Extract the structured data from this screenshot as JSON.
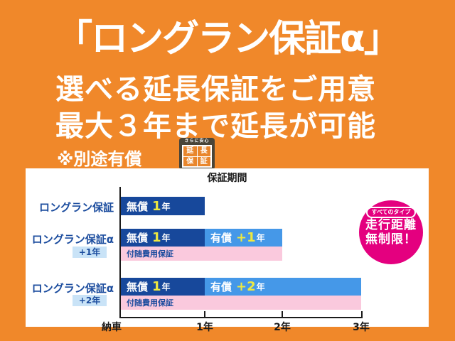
{
  "header": {
    "title": "「ロングラン保証α」",
    "subtitle1": "選べる延長保証をご用意",
    "subtitle2": "最大３年まで延長が可能",
    "note": "※別途有償",
    "stamp": {
      "tagline": "さらに安心",
      "chars": [
        "延",
        "長",
        "保",
        "証"
      ]
    }
  },
  "chart": {
    "title": "保証期間",
    "rows": [
      {
        "label": "ロングラン保証",
        "free": {
          "label": "無償",
          "num": "1",
          "unit": "年"
        }
      },
      {
        "label": "ロングラン保証α",
        "sublabel": "+1年",
        "free": {
          "label": "無償",
          "num": "1",
          "unit": "年"
        },
        "paid": {
          "label": "有償",
          "num": "+1",
          "unit": "年"
        },
        "cost_label": "付随費用保証"
      },
      {
        "label": "ロングラン保証α",
        "sublabel": "+2年",
        "free": {
          "label": "無償",
          "num": "1",
          "unit": "年"
        },
        "paid": {
          "label": "有償",
          "num": "+2",
          "unit": "年"
        },
        "cost_label": "付随費用保証"
      }
    ],
    "x_labels": [
      "納車",
      "1年",
      "2年",
      "3年"
    ],
    "badge": {
      "pill": "すべてのタイプ",
      "line1": "走行距離",
      "line2": "無制限！"
    }
  },
  "colors": {
    "background_orange": "#F0882A",
    "free_bar_blue": "#17489B",
    "paid_bar_blue": "#4598E8",
    "cost_bar_pink": "#FAC9DD",
    "label_blue": "#1B4C9E",
    "sublabel_bg_blue": "#C9E3F7",
    "badge_magenta": "#E4007F",
    "year_number_yellow": "#EFE93F"
  },
  "chart_data": {
    "type": "bar",
    "subtype": "horizontal-timeline",
    "title": "保証期間",
    "xlim_years": [
      0,
      3
    ],
    "x_ticks": [
      "納車",
      "1年",
      "2年",
      "3年"
    ],
    "rows": [
      {
        "label": "ロングラン保証",
        "bars": [
          {
            "name": "無償 1年",
            "start": 0,
            "end": 1
          }
        ]
      },
      {
        "label": "ロングラン保証α +1年",
        "bars": [
          {
            "name": "無償 1年",
            "start": 0,
            "end": 1
          },
          {
            "name": "有償 +1年",
            "start": 1,
            "end": 2
          },
          {
            "name": "付随費用保証",
            "start": 0,
            "end": 2
          }
        ]
      },
      {
        "label": "ロングラン保証α +2年",
        "bars": [
          {
            "name": "無償 1年",
            "start": 0,
            "end": 1
          },
          {
            "name": "有償 +2年",
            "start": 1,
            "end": 3
          },
          {
            "name": "付随費用保証",
            "start": 0,
            "end": 3
          }
        ]
      }
    ],
    "annotation": "すべてのタイプ 走行距離無制限！"
  }
}
